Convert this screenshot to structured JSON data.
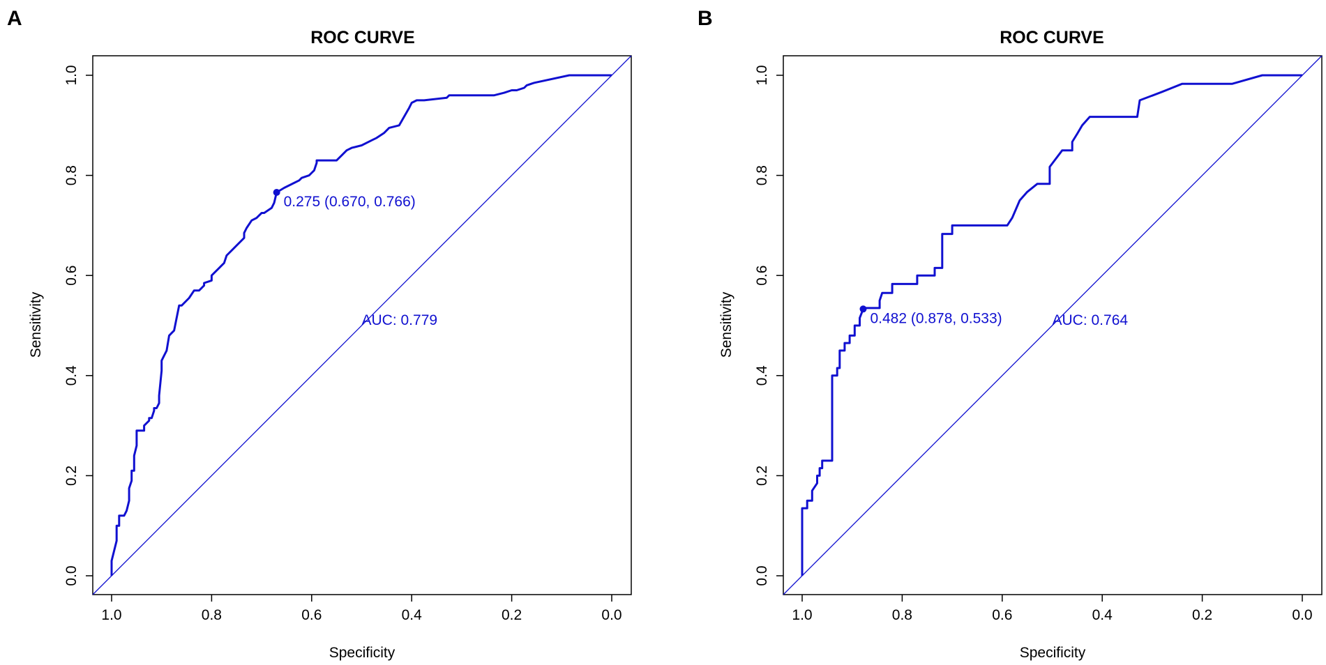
{
  "colors": {
    "curve": "#1010d0",
    "axis": "#000000",
    "background": "#ffffff"
  },
  "chart_data": [
    {
      "type": "line",
      "panel": "A",
      "title": "ROC CURVE",
      "xlabel": "Specificity",
      "ylabel": "Sensitivity",
      "xlim": [
        1.0,
        0.0
      ],
      "ylim": [
        0.0,
        1.0
      ],
      "x_reversed": true,
      "xticks": [
        1.0,
        0.8,
        0.6,
        0.4,
        0.2,
        0.0
      ],
      "xtick_labels": [
        "1.0",
        "0.8",
        "0.6",
        "0.4",
        "0.2",
        "0.0"
      ],
      "yticks": [
        0.0,
        0.2,
        0.4,
        0.6,
        0.8,
        1.0
      ],
      "ytick_labels": [
        "0.0",
        "0.2",
        "0.4",
        "0.6",
        "0.8",
        "1.0"
      ],
      "auc_label": "AUC: 0.779",
      "auc_position": [
        0.5,
        0.5
      ],
      "threshold_label": "0.275 (0.670, 0.766)",
      "threshold_point": [
        0.67,
        0.766
      ],
      "series": [
        {
          "name": "ROC",
          "specificity": [
            1.0,
            1.0,
            0.995,
            0.99,
            0.99,
            0.985,
            0.985,
            0.975,
            0.97,
            0.965,
            0.965,
            0.96,
            0.96,
            0.955,
            0.955,
            0.95,
            0.95,
            0.935,
            0.935,
            0.925,
            0.925,
            0.92,
            0.915,
            0.915,
            0.91,
            0.905,
            0.905,
            0.9,
            0.9,
            0.895,
            0.89,
            0.885,
            0.88,
            0.88,
            0.875,
            0.87,
            0.865,
            0.86,
            0.86,
            0.845,
            0.835,
            0.825,
            0.815,
            0.815,
            0.8,
            0.8,
            0.785,
            0.785,
            0.775,
            0.77,
            0.76,
            0.75,
            0.74,
            0.735,
            0.735,
            0.73,
            0.72,
            0.72,
            0.71,
            0.7,
            0.695,
            0.68,
            0.675,
            0.67,
            0.655,
            0.635,
            0.625,
            0.62,
            0.605,
            0.6,
            0.595,
            0.59,
            0.59,
            0.55,
            0.54,
            0.53,
            0.52,
            0.5,
            0.48,
            0.47,
            0.455,
            0.445,
            0.425,
            0.405,
            0.4,
            0.39,
            0.375,
            0.33,
            0.325,
            0.235,
            0.215,
            0.2,
            0.19,
            0.175,
            0.17,
            0.155,
            0.085,
            0.0
          ],
          "sensitivity": [
            0.0,
            0.03,
            0.05,
            0.07,
            0.1,
            0.1,
            0.12,
            0.12,
            0.13,
            0.15,
            0.175,
            0.19,
            0.21,
            0.21,
            0.24,
            0.26,
            0.29,
            0.29,
            0.3,
            0.31,
            0.315,
            0.315,
            0.33,
            0.335,
            0.335,
            0.345,
            0.36,
            0.41,
            0.43,
            0.44,
            0.45,
            0.48,
            0.485,
            0.485,
            0.49,
            0.515,
            0.54,
            0.54,
            0.54,
            0.555,
            0.57,
            0.57,
            0.58,
            0.585,
            0.59,
            0.6,
            0.615,
            0.615,
            0.625,
            0.64,
            0.65,
            0.66,
            0.67,
            0.675,
            0.685,
            0.695,
            0.71,
            0.71,
            0.715,
            0.725,
            0.725,
            0.735,
            0.745,
            0.766,
            0.775,
            0.785,
            0.79,
            0.795,
            0.8,
            0.805,
            0.81,
            0.825,
            0.83,
            0.83,
            0.84,
            0.85,
            0.855,
            0.86,
            0.87,
            0.875,
            0.885,
            0.895,
            0.9,
            0.935,
            0.945,
            0.95,
            0.95,
            0.955,
            0.96,
            0.96,
            0.965,
            0.97,
            0.97,
            0.975,
            0.98,
            0.985,
            1.0,
            1.0
          ]
        }
      ]
    },
    {
      "type": "line",
      "panel": "B",
      "title": "ROC CURVE",
      "xlabel": "Specificity",
      "ylabel": "Sensitivity",
      "xlim": [
        1.0,
        0.0
      ],
      "ylim": [
        0.0,
        1.0
      ],
      "x_reversed": true,
      "xticks": [
        1.0,
        0.8,
        0.6,
        0.4,
        0.2,
        0.0
      ],
      "xtick_labels": [
        "1.0",
        "0.8",
        "0.6",
        "0.4",
        "0.2",
        "0.0"
      ],
      "yticks": [
        0.0,
        0.2,
        0.4,
        0.6,
        0.8,
        1.0
      ],
      "ytick_labels": [
        "0.0",
        "0.2",
        "0.4",
        "0.6",
        "0.8",
        "1.0"
      ],
      "auc_label": "AUC: 0.764",
      "auc_position": [
        0.5,
        0.5
      ],
      "threshold_label": "0.482 (0.878, 0.533)",
      "threshold_point": [
        0.878,
        0.533
      ],
      "series": [
        {
          "name": "ROC",
          "specificity": [
            1.0,
            1.0,
            0.99,
            0.99,
            0.98,
            0.98,
            0.97,
            0.97,
            0.965,
            0.965,
            0.96,
            0.96,
            0.94,
            0.94,
            0.93,
            0.93,
            0.925,
            0.925,
            0.915,
            0.915,
            0.905,
            0.905,
            0.895,
            0.895,
            0.885,
            0.885,
            0.878,
            0.878,
            0.845,
            0.845,
            0.84,
            0.82,
            0.82,
            0.81,
            0.81,
            0.77,
            0.77,
            0.76,
            0.74,
            0.735,
            0.735,
            0.72,
            0.72,
            0.7,
            0.7,
            0.6,
            0.59,
            0.58,
            0.58,
            0.565,
            0.55,
            0.55,
            0.53,
            0.51,
            0.505,
            0.505,
            0.48,
            0.46,
            0.46,
            0.45,
            0.44,
            0.425,
            0.405,
            0.37,
            0.33,
            0.325,
            0.28,
            0.24,
            0.23,
            0.14,
            0.08,
            0.0
          ],
          "sensitivity": [
            0.0,
            0.135,
            0.135,
            0.15,
            0.15,
            0.17,
            0.185,
            0.2,
            0.2,
            0.215,
            0.215,
            0.23,
            0.23,
            0.4,
            0.4,
            0.415,
            0.415,
            0.45,
            0.45,
            0.465,
            0.465,
            0.48,
            0.48,
            0.5,
            0.5,
            0.515,
            0.533,
            0.535,
            0.535,
            0.55,
            0.565,
            0.565,
            0.583,
            0.583,
            0.583,
            0.583,
            0.6,
            0.6,
            0.6,
            0.6,
            0.615,
            0.615,
            0.683,
            0.683,
            0.7,
            0.7,
            0.7,
            0.715,
            0.715,
            0.75,
            0.767,
            0.767,
            0.783,
            0.783,
            0.783,
            0.817,
            0.85,
            0.85,
            0.867,
            0.883,
            0.9,
            0.917,
            0.917,
            0.917,
            0.917,
            0.95,
            0.967,
            0.983,
            0.983,
            0.983,
            1.0,
            1.0
          ]
        }
      ]
    }
  ]
}
